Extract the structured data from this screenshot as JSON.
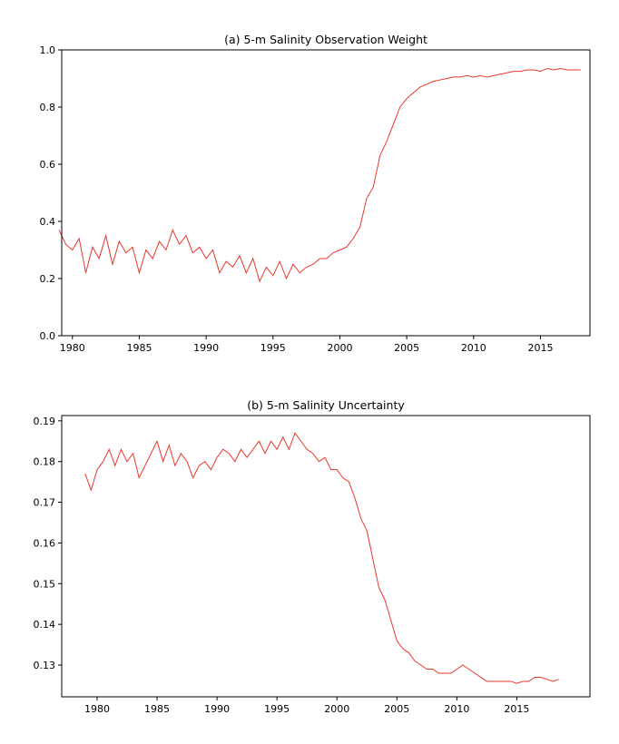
{
  "chart_data": [
    {
      "type": "line",
      "title": "(a) 5-m Salinity Observation Weight",
      "x": [
        1979,
        1979.5,
        1980,
        1980.5,
        1981,
        1981.5,
        1982,
        1982.5,
        1983,
        1983.5,
        1984,
        1984.5,
        1985,
        1985.5,
        1986,
        1986.5,
        1987,
        1987.5,
        1988,
        1988.5,
        1989,
        1989.5,
        1990,
        1990.5,
        1991,
        1991.5,
        1992,
        1992.5,
        1993,
        1993.5,
        1994,
        1994.5,
        1995,
        1995.5,
        1996,
        1996.5,
        1997,
        1997.5,
        1998,
        1998.5,
        1999,
        1999.5,
        2000,
        2000.5,
        2001,
        2001.5,
        2002,
        2002.5,
        2003,
        2003.5,
        2004,
        2004.5,
        2005,
        2005.5,
        2006,
        2006.5,
        2007,
        2007.5,
        2008,
        2008.5,
        2009,
        2009.5,
        2010,
        2010.5,
        2011,
        2011.5,
        2012,
        2012.5,
        2013,
        2013.5,
        2014,
        2014.5,
        2015,
        2015.5,
        2016,
        2016.5,
        2017,
        2017.5,
        2018
      ],
      "series": [
        {
          "color": "#e8372a",
          "values": [
            0.37,
            0.32,
            0.3,
            0.34,
            0.22,
            0.31,
            0.27,
            0.35,
            0.25,
            0.33,
            0.29,
            0.31,
            0.22,
            0.3,
            0.27,
            0.33,
            0.3,
            0.37,
            0.32,
            0.35,
            0.29,
            0.31,
            0.27,
            0.3,
            0.22,
            0.26,
            0.24,
            0.28,
            0.22,
            0.27,
            0.19,
            0.24,
            0.21,
            0.26,
            0.2,
            0.25,
            0.22,
            0.24,
            0.25,
            0.27,
            0.27,
            0.29,
            0.3,
            0.31,
            0.34,
            0.38,
            0.48,
            0.52,
            0.63,
            0.68,
            0.74,
            0.8,
            0.83,
            0.85,
            0.87,
            0.88,
            0.89,
            0.895,
            0.9,
            0.905,
            0.905,
            0.91,
            0.905,
            0.91,
            0.905,
            0.91,
            0.915,
            0.92,
            0.925,
            0.925,
            0.93,
            0.93,
            0.925,
            0.935,
            0.93,
            0.935,
            0.93,
            0.93,
            0.93
          ]
        }
      ],
      "xlim": [
        1979.2,
        2018.7
      ],
      "xticks": [
        1980,
        1985,
        1990,
        1995,
        2000,
        2005,
        2010,
        2015
      ],
      "ylim": [
        0,
        1
      ],
      "yticks": [
        {
          "value": 0,
          "label": "0.0"
        },
        0.2,
        0.4,
        0.6,
        0.8,
        {
          "value": 1,
          "label": "1.0"
        }
      ],
      "grid": false
    },
    {
      "type": "line",
      "title": "(b) 5-m Salinity Uncertainty",
      "x": [
        1979,
        1979.5,
        1980,
        1980.5,
        1981,
        1981.5,
        1982,
        1982.5,
        1983,
        1983.5,
        1984,
        1984.5,
        1985,
        1985.5,
        1986,
        1986.5,
        1987,
        1987.5,
        1988,
        1988.5,
        1989,
        1989.5,
        1990,
        1990.5,
        1991,
        1991.5,
        1992,
        1992.5,
        1993,
        1993.5,
        1994,
        1994.5,
        1995,
        1995.5,
        1996,
        1996.5,
        1997,
        1997.5,
        1998,
        1998.5,
        1999,
        1999.5,
        2000,
        2000.5,
        2001,
        2001.5,
        2002,
        2002.5,
        2003,
        2003.5,
        2004,
        2004.5,
        2005,
        2005.5,
        2006,
        2006.5,
        2007,
        2007.5,
        2008,
        2008.5,
        2009,
        2009.5,
        2010,
        2010.5,
        2011,
        2011.5,
        2012,
        2012.5,
        2013,
        2013.5,
        2014,
        2014.5,
        2015,
        2015.5,
        2016,
        2016.5,
        2017,
        2017.5,
        2018,
        2018.5
      ],
      "series": [
        {
          "color": "#e8372a",
          "values": [
            0.177,
            0.173,
            0.178,
            0.18,
            0.183,
            0.179,
            0.183,
            0.18,
            0.182,
            0.176,
            0.179,
            0.182,
            0.185,
            0.18,
            0.184,
            0.179,
            0.182,
            0.18,
            0.176,
            0.179,
            0.18,
            0.178,
            0.181,
            0.183,
            0.182,
            0.18,
            0.183,
            0.181,
            0.183,
            0.185,
            0.182,
            0.185,
            0.183,
            0.186,
            0.183,
            0.187,
            0.185,
            0.183,
            0.182,
            0.18,
            0.181,
            0.178,
            0.178,
            0.176,
            0.175,
            0.171,
            0.166,
            0.163,
            0.156,
            0.149,
            0.146,
            0.141,
            0.136,
            0.134,
            0.133,
            0.131,
            0.13,
            0.129,
            0.129,
            0.128,
            0.128,
            0.128,
            0.129,
            0.13,
            0.129,
            0.128,
            0.127,
            0.126,
            0.126,
            0.126,
            0.126,
            0.126,
            0.1255,
            0.126,
            0.126,
            0.127,
            0.127,
            0.1265,
            0.126,
            0.1265
          ]
        }
      ],
      "xlim": [
        1977.05,
        2021.1
      ],
      "xticks": [
        1980,
        1985,
        1990,
        1995,
        2000,
        2005,
        2010,
        2015
      ],
      "ylim": [
        0.1222,
        0.1913
      ],
      "yticks": [
        0.13,
        0.14,
        0.15,
        0.16,
        0.17,
        0.18,
        0.19
      ],
      "grid": false
    }
  ]
}
